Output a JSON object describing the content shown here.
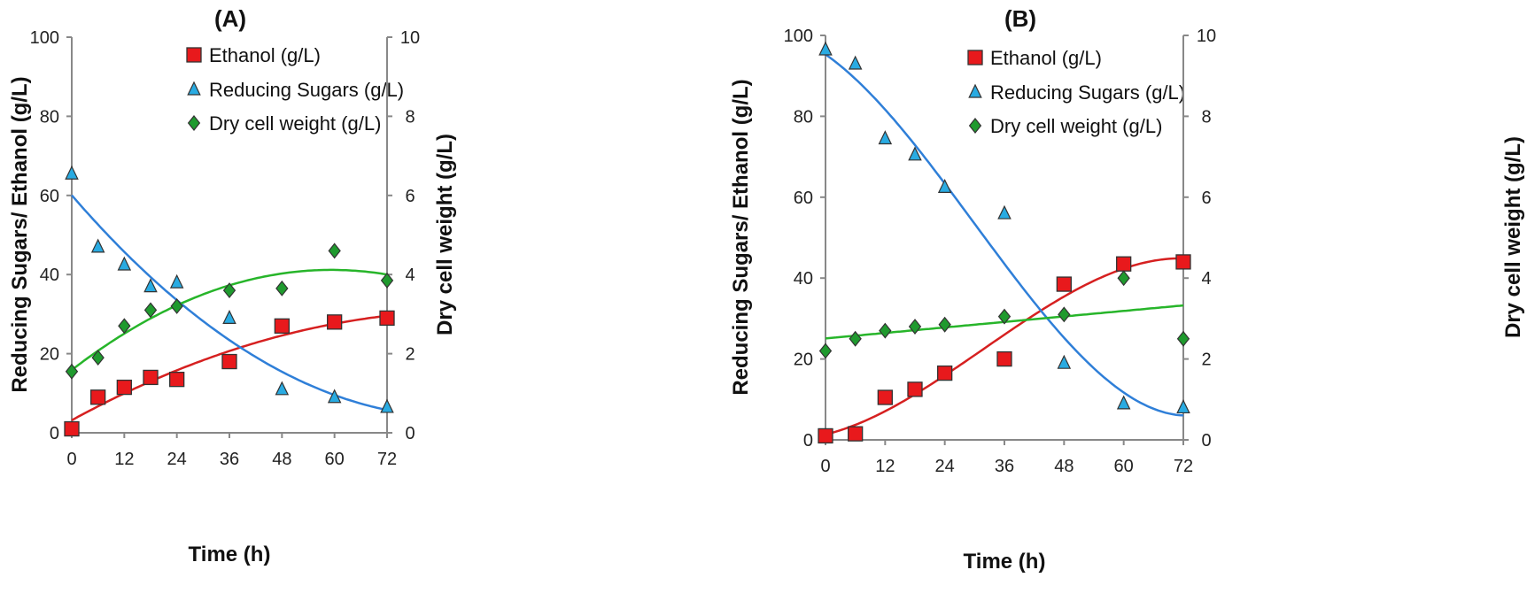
{
  "chart_data": [
    {
      "type": "scatter",
      "title": "(A)",
      "xlabel": "Time (h)",
      "ylabel": "Reducing Sugars/ Ethanol (g/L)",
      "y2label": "Dry cell weight (g/L)",
      "xlim": [
        0,
        72
      ],
      "xticks": [
        0,
        12,
        24,
        36,
        48,
        60,
        72
      ],
      "ylim": [
        0,
        100
      ],
      "yticks": [
        0,
        20,
        40,
        60,
        80,
        100
      ],
      "y2lim": [
        0,
        10
      ],
      "y2ticks": [
        0,
        2,
        4,
        6,
        8,
        10
      ],
      "grid": false,
      "legend": "top-right",
      "x": [
        0,
        6,
        12,
        18,
        24,
        36,
        48,
        60,
        72
      ],
      "series": [
        {
          "name": "Ethanol (g/L)",
          "axis": "left",
          "marker": "square",
          "color": "#e8191c",
          "line_color": "#d62020",
          "trendline_order": 2,
          "values": [
            1,
            9,
            11.5,
            14,
            13.5,
            18,
            27,
            28,
            29
          ]
        },
        {
          "name": "Reducing Sugars (g/L)",
          "axis": "left",
          "marker": "triangle",
          "color": "#29abe2",
          "line_color": "#2f7fd8",
          "trendline_order": 2,
          "values": [
            65.5,
            47,
            42.5,
            37,
            38,
            29,
            11,
            9,
            6.5
          ]
        },
        {
          "name": "Dry cell weight (g/L)",
          "axis": "right",
          "marker": "diamond",
          "color": "#1f9a2e",
          "line_color": "#27b52a",
          "trendline_order": 2,
          "values": [
            1.55,
            1.9,
            2.7,
            3.1,
            3.2,
            3.6,
            3.65,
            4.6,
            3.85
          ]
        }
      ]
    },
    {
      "type": "scatter",
      "title": "(B)",
      "xlabel": "Time (h)",
      "ylabel": "Reducing Sugars/ Ethanol (g/L)",
      "y2label": "Dry cell weight (g/L)",
      "xlim": [
        0,
        72
      ],
      "xticks": [
        0,
        12,
        24,
        36,
        48,
        60,
        72
      ],
      "ylim": [
        0,
        100
      ],
      "yticks": [
        0,
        20,
        40,
        60,
        80,
        100
      ],
      "y2lim": [
        0,
        10
      ],
      "y2ticks": [
        0,
        2,
        4,
        6,
        8,
        10
      ],
      "grid": false,
      "legend": "top-right",
      "x": [
        0,
        6,
        12,
        18,
        24,
        36,
        48,
        60,
        72
      ],
      "series": [
        {
          "name": "Ethanol (g/L)",
          "axis": "left",
          "marker": "square",
          "color": "#e8191c",
          "line_color": "#d62020",
          "trendline_order": 3,
          "values": [
            1,
            1.5,
            10.5,
            12.5,
            16.5,
            20,
            38.5,
            43.5,
            44
          ]
        },
        {
          "name": "Reducing Sugars (g/L)",
          "axis": "left",
          "marker": "triangle",
          "color": "#29abe2",
          "line_color": "#2f7fd8",
          "trendline_order": 3,
          "values": [
            96.5,
            93,
            74.5,
            70.5,
            62.5,
            56,
            19,
            9,
            8
          ]
        },
        {
          "name": "Dry cell weight (g/L)",
          "axis": "right",
          "marker": "diamond",
          "color": "#1f9a2e",
          "line_color": "#27b52a",
          "trendline_order": 1,
          "values": [
            2.2,
            2.5,
            2.7,
            2.8,
            2.85,
            3.05,
            3.1,
            4.0,
            2.5
          ]
        }
      ]
    }
  ]
}
